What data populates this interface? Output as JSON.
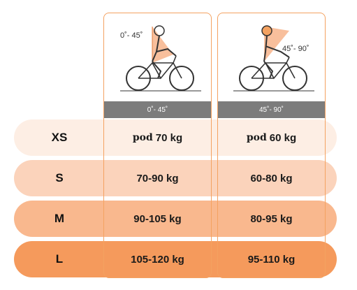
{
  "columns": [
    {
      "angle_header": "0˚- 45˚",
      "illustration_angle_label": "0˚- 45˚"
    },
    {
      "angle_header": "45˚- 90˚",
      "illustration_angle_label": "45˚- 90˚"
    }
  ],
  "rows": [
    {
      "size": "XS",
      "col1_prefix": "pod",
      "col1_value": "70 kg",
      "col2_prefix": "pod",
      "col2_value": "60 kg"
    },
    {
      "size": "S",
      "col1_value": "70-90 kg",
      "col2_value": "60-80 kg"
    },
    {
      "size": "M",
      "col1_value": "90-105 kg",
      "col2_value": "80-95 kg"
    },
    {
      "size": "L",
      "col1_value": "105-120 kg",
      "col2_value": "95-110 kg"
    }
  ],
  "colors": {
    "row_xs": "#fdeee4",
    "row_s": "#fbd3bb",
    "row_m": "#f9b88e",
    "row_l": "#f59a5c",
    "accent": "#f4a261",
    "header_bar": "#7c7c7c"
  },
  "icons": [
    "cyclist-upright-icon",
    "cyclist-aero-icon"
  ]
}
